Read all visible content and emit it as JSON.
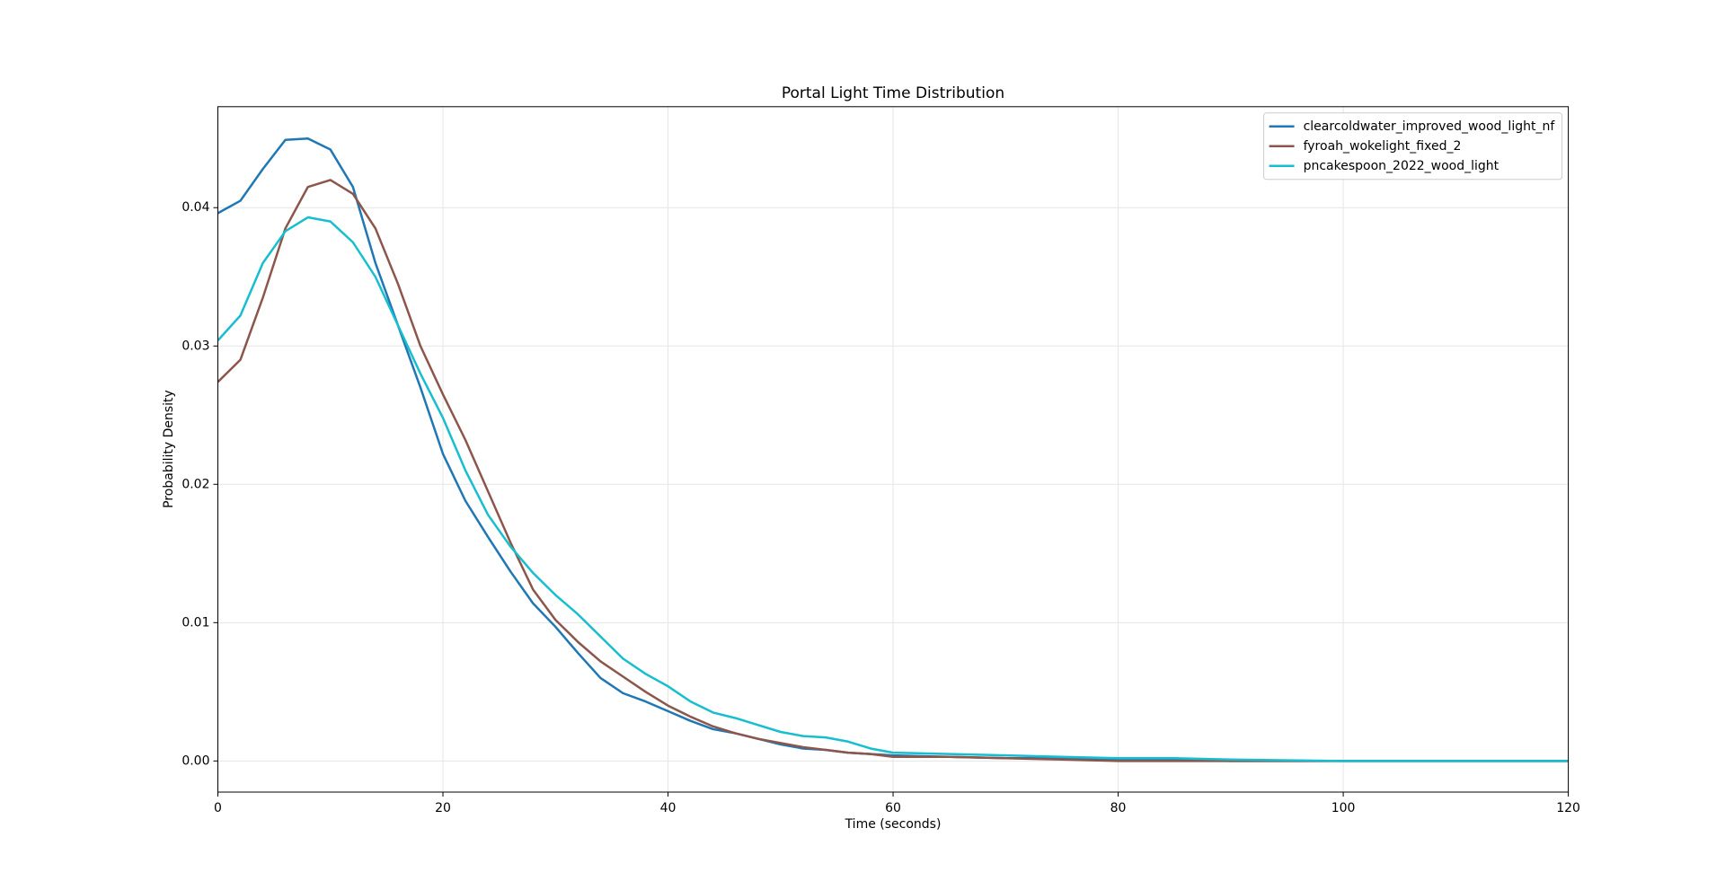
{
  "chart_data": {
    "type": "line",
    "title": "Portal Light Time Distribution",
    "xlabel": "Time (seconds)",
    "ylabel": "Probability Density",
    "x": [
      0,
      2,
      4,
      6,
      8,
      10,
      12,
      14,
      16,
      18,
      20,
      22,
      24,
      26,
      28,
      30,
      32,
      34,
      36,
      38,
      40,
      42,
      44,
      46,
      48,
      50,
      52,
      54,
      56,
      58,
      60,
      65,
      70,
      75,
      80,
      85,
      90,
      100,
      110,
      120
    ],
    "series": [
      {
        "name": "clearcoldwater_improved_wood_light_nf",
        "color": "#1f77b4",
        "values": [
          0.0396,
          0.0405,
          0.0428,
          0.0449,
          0.045,
          0.0442,
          0.0415,
          0.036,
          0.0315,
          0.027,
          0.0222,
          0.0188,
          0.0162,
          0.0137,
          0.0114,
          0.0097,
          0.0078,
          0.006,
          0.0049,
          0.0043,
          0.0036,
          0.0029,
          0.0023,
          0.002,
          0.0016,
          0.0012,
          0.0009,
          0.0008,
          0.0006,
          0.0005,
          0.0004,
          0.0003,
          0.0002,
          0.0002,
          0.0001,
          0.0001,
          0,
          0,
          0,
          0
        ]
      },
      {
        "name": "fyroah_wokelight_fixed_2",
        "color": "#8c564b",
        "values": [
          0.0274,
          0.029,
          0.0335,
          0.0385,
          0.0415,
          0.042,
          0.041,
          0.0385,
          0.0345,
          0.03,
          0.0265,
          0.0232,
          0.0195,
          0.0158,
          0.0124,
          0.0102,
          0.0086,
          0.0072,
          0.0061,
          0.005,
          0.004,
          0.0032,
          0.0025,
          0.002,
          0.0016,
          0.0013,
          0.001,
          0.0008,
          0.0006,
          0.0005,
          0.0003,
          0.0003,
          0.0002,
          0.0001,
          0,
          0,
          0,
          0,
          0,
          0
        ]
      },
      {
        "name": "pncakespoon_2022_wood_light",
        "color": "#17becf",
        "values": [
          0.0304,
          0.0322,
          0.036,
          0.0383,
          0.0393,
          0.039,
          0.0375,
          0.035,
          0.0315,
          0.028,
          0.0248,
          0.021,
          0.0178,
          0.0155,
          0.0136,
          0.012,
          0.0106,
          0.009,
          0.0074,
          0.0063,
          0.0054,
          0.0043,
          0.0035,
          0.0031,
          0.0026,
          0.0021,
          0.0018,
          0.0017,
          0.0014,
          0.0009,
          0.0006,
          0.0005,
          0.0004,
          0.0003,
          0.0002,
          0.0002,
          0.0001,
          0,
          0,
          0
        ]
      }
    ],
    "xlim": [
      0,
      120
    ],
    "xticks": [
      0,
      20,
      40,
      60,
      80,
      100,
      120
    ],
    "ylim": [
      -0.00225,
      0.0473
    ],
    "yticks": [
      {
        "value": 0,
        "label": "0.00"
      },
      {
        "value": 0.01,
        "label": "0.01"
      },
      {
        "value": 0.02,
        "label": "0.02"
      },
      {
        "value": 0.03,
        "label": "0.03"
      },
      {
        "value": 0.04,
        "label": "0.04"
      }
    ],
    "grid": true,
    "legend": "upper right"
  }
}
